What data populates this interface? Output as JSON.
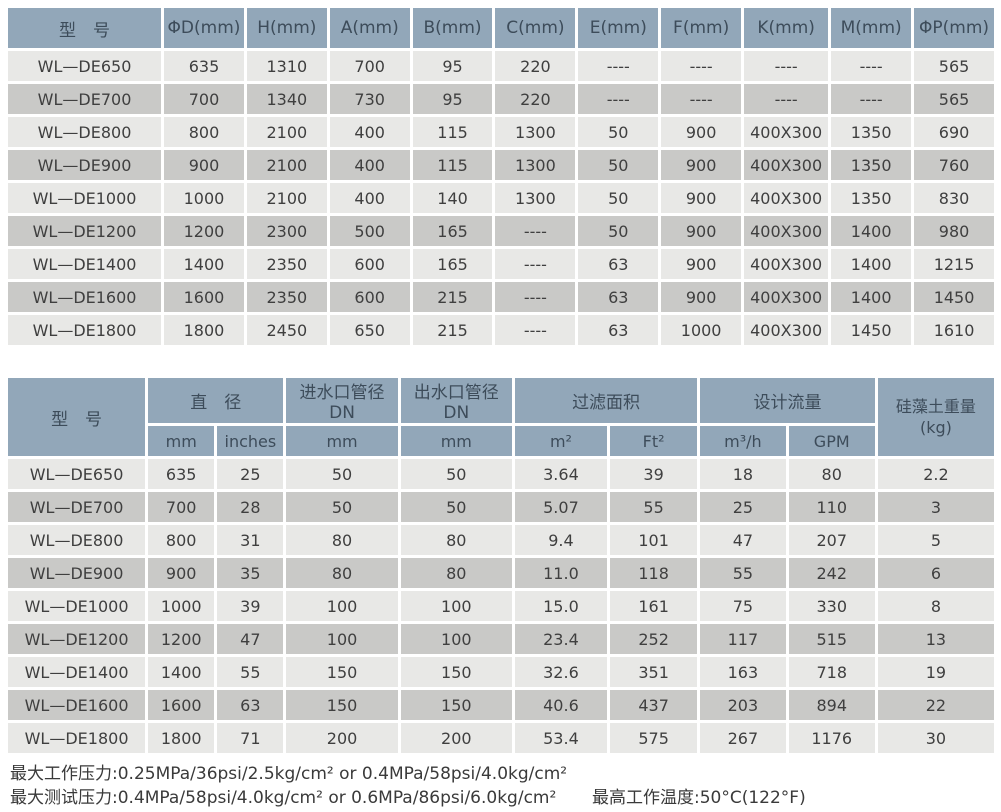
{
  "colors": {
    "header_bg": "#92a7b9",
    "header_text": "#3d4c5a",
    "row_light": "#e8e8e6",
    "row_dark": "#c9c9c7",
    "cell_text": "#3f3f3f"
  },
  "table1": {
    "headers": [
      "型　号",
      "ΦD(mm)",
      "H(mm)",
      "A(mm)",
      "B(mm)",
      "C(mm)",
      "E(mm)",
      "F(mm)",
      "K(mm)",
      "M(mm)",
      "ΦP(mm)"
    ],
    "rows": [
      [
        "WL—DE650",
        "635",
        "1310",
        "700",
        "95",
        "220",
        "----",
        "----",
        "----",
        "----",
        "565"
      ],
      [
        "WL—DE700",
        "700",
        "1340",
        "730",
        "95",
        "220",
        "----",
        "----",
        "----",
        "----",
        "565"
      ],
      [
        "WL—DE800",
        "800",
        "2100",
        "400",
        "115",
        "1300",
        "50",
        "900",
        "400X300",
        "1350",
        "690"
      ],
      [
        "WL—DE900",
        "900",
        "2100",
        "400",
        "115",
        "1300",
        "50",
        "900",
        "400X300",
        "1350",
        "760"
      ],
      [
        "WL—DE1000",
        "1000",
        "2100",
        "400",
        "140",
        "1300",
        "50",
        "900",
        "400X300",
        "1350",
        "830"
      ],
      [
        "WL—DE1200",
        "1200",
        "2300",
        "500",
        "165",
        "----",
        "50",
        "900",
        "400X300",
        "1400",
        "980"
      ],
      [
        "WL—DE1400",
        "1400",
        "2350",
        "600",
        "165",
        "----",
        "63",
        "900",
        "400X300",
        "1400",
        "1215"
      ],
      [
        "WL—DE1600",
        "1600",
        "2350",
        "600",
        "215",
        "----",
        "63",
        "900",
        "400X300",
        "1400",
        "1450"
      ],
      [
        "WL—DE1800",
        "1800",
        "2450",
        "650",
        "215",
        "----",
        "63",
        "1000",
        "400X300",
        "1450",
        "1610"
      ]
    ]
  },
  "table2": {
    "header": {
      "model": "型　号",
      "diameter": "直　径",
      "diameter_mm": "mm",
      "diameter_inches": "inches",
      "inlet": "进水口管径DN",
      "inlet_mm": "mm",
      "outlet": "出水口管径DN",
      "outlet_mm": "mm",
      "filter_area": "过滤面积",
      "filter_area_m2": "m²",
      "filter_area_ft2": "Ft²",
      "design_flow": "设计流量",
      "design_flow_m3h": "m³/h",
      "design_flow_gpm": "GPM",
      "de_weight_line1": "硅藻土重量",
      "de_weight_line2": "(kg)"
    },
    "rows": [
      [
        "WL—DE650",
        "635",
        "25",
        "50",
        "50",
        "3.64",
        "39",
        "18",
        "80",
        "2.2"
      ],
      [
        "WL—DE700",
        "700",
        "28",
        "50",
        "50",
        "5.07",
        "55",
        "25",
        "110",
        "3"
      ],
      [
        "WL—DE800",
        "800",
        "31",
        "80",
        "80",
        "9.4",
        "101",
        "47",
        "207",
        "5"
      ],
      [
        "WL—DE900",
        "900",
        "35",
        "80",
        "80",
        "11.0",
        "118",
        "55",
        "242",
        "6"
      ],
      [
        "WL—DE1000",
        "1000",
        "39",
        "100",
        "100",
        "15.0",
        "161",
        "75",
        "330",
        "8"
      ],
      [
        "WL—DE1200",
        "1200",
        "47",
        "100",
        "100",
        "23.4",
        "252",
        "117",
        "515",
        "13"
      ],
      [
        "WL—DE1400",
        "1400",
        "55",
        "150",
        "150",
        "32.6",
        "351",
        "163",
        "718",
        "19"
      ],
      [
        "WL—DE1600",
        "1600",
        "63",
        "150",
        "150",
        "40.6",
        "437",
        "203",
        "894",
        "22"
      ],
      [
        "WL—DE1800",
        "1800",
        "71",
        "200",
        "200",
        "53.4",
        "575",
        "267",
        "1176",
        "30"
      ]
    ]
  },
  "notes": {
    "line1": "最大工作压力:0.25MPa/36psi/2.5kg/cm² or 0.4MPa/58psi/4.0kg/cm²",
    "line2": "最大测试压力:0.4MPa/58psi/4.0kg/cm² or 0.6MPa/86psi/6.0kg/cm²",
    "right": "最高工作温度:50°C(122°F)"
  }
}
